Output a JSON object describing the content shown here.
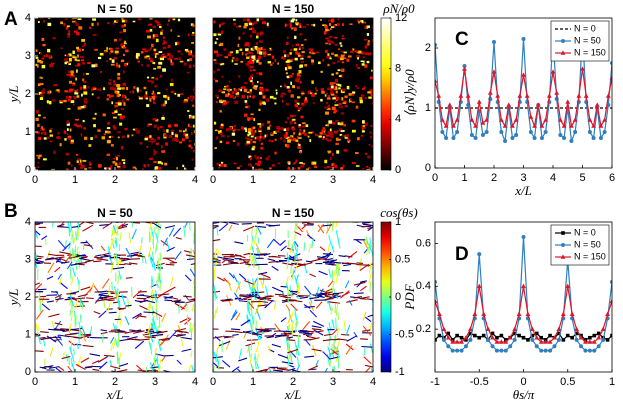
{
  "chart_data": [
    {
      "type": "heatmap",
      "panel": "A",
      "title": "N = 50",
      "ylabel": "y/L",
      "xlim": [
        0,
        4
      ],
      "ylim": [
        0,
        4
      ],
      "xticks": [
        0,
        1,
        2,
        3,
        4
      ],
      "yticks": [
        0,
        1,
        2,
        3,
        4
      ],
      "colormap": "hot"
    },
    {
      "type": "heatmap",
      "title": "N = 150",
      "xlim": [
        0,
        4
      ],
      "ylim": [
        0,
        4
      ],
      "xticks": [
        0,
        1,
        2,
        3,
        4
      ],
      "colormap": "hot",
      "colorbar": {
        "label": "ρN/ρ0",
        "lim": [
          0,
          12
        ],
        "ticks": [
          0,
          4,
          8,
          12
        ]
      }
    },
    {
      "type": "quiver",
      "panel": "B",
      "title": "N = 50",
      "xlabel": "x/L",
      "ylabel": "y/L",
      "xlim": [
        0,
        4
      ],
      "ylim": [
        0,
        4
      ],
      "xticks": [
        0,
        1,
        2,
        3,
        4
      ],
      "yticks": [
        0,
        1,
        2,
        3,
        4
      ],
      "colormap": "jet"
    },
    {
      "type": "quiver",
      "title": "N = 150",
      "xlabel": "x/L",
      "xlim": [
        0,
        4
      ],
      "ylim": [
        0,
        4
      ],
      "xticks": [
        0,
        1,
        2,
        3,
        4
      ],
      "colormap": "jet",
      "colorbar": {
        "label": "cos(θs)",
        "lim": [
          -1,
          1
        ],
        "ticks": [
          -1,
          -0.5,
          0,
          0.5,
          1
        ]
      }
    },
    {
      "type": "line",
      "panel": "C",
      "xlabel": "x/L",
      "ylabel": "⟨ρN⟩y/ρ0",
      "xlim": [
        0,
        6
      ],
      "ylim": [
        0,
        2.5
      ],
      "xticks": [
        0,
        1,
        2,
        3,
        4,
        5,
        6
      ],
      "yticks": [
        0,
        1,
        2
      ],
      "legend": "upper right",
      "series": [
        {
          "name": "N = 0",
          "color": "#000000",
          "dash": true,
          "x": [
            0,
            6
          ],
          "values": [
            1,
            1
          ]
        },
        {
          "name": "N = 50",
          "color": "#2f7fc1",
          "marker": "circle",
          "x": [
            0,
            0.125,
            0.25,
            0.375,
            0.5,
            0.625,
            0.75,
            0.875,
            1,
            1.125,
            1.25,
            1.375,
            1.5,
            1.625,
            1.75,
            1.875,
            2,
            2.125,
            2.25,
            2.375,
            2.5,
            2.625,
            2.75,
            2.875,
            3,
            3.125,
            3.25,
            3.375,
            3.5,
            3.625,
            3.75,
            3.875,
            4,
            4.125,
            4.25,
            4.375,
            4.5,
            4.625,
            4.75,
            4.875,
            5,
            5.125,
            5.25,
            5.375,
            5.5,
            5.625,
            5.75,
            5.875,
            6
          ],
          "values": [
            2.05,
            1.1,
            0.6,
            0.5,
            1.0,
            0.5,
            0.6,
            1.1,
            1.7,
            1.05,
            0.55,
            0.5,
            0.95,
            0.55,
            0.6,
            1.15,
            2.1,
            1.1,
            0.6,
            0.45,
            1.0,
            0.5,
            0.55,
            1.1,
            2.15,
            1.1,
            0.6,
            0.5,
            1.05,
            0.5,
            0.6,
            1.1,
            2.2,
            1.15,
            0.55,
            0.5,
            1.0,
            0.45,
            0.6,
            1.1,
            2.25,
            1.1,
            0.6,
            0.5,
            1.0,
            0.5,
            0.6,
            1.05,
            1.75
          ]
        },
        {
          "name": "N = 150",
          "color": "#d9182d",
          "marker": "triangle",
          "x": [
            0,
            0.125,
            0.25,
            0.375,
            0.5,
            0.625,
            0.75,
            0.875,
            1,
            1.125,
            1.25,
            1.375,
            1.5,
            1.625,
            1.75,
            1.875,
            2,
            2.125,
            2.25,
            2.375,
            2.5,
            2.625,
            2.75,
            2.875,
            3,
            3.125,
            3.25,
            3.375,
            3.5,
            3.625,
            3.75,
            3.875,
            4,
            4.125,
            4.25,
            4.375,
            4.5,
            4.625,
            4.75,
            4.875,
            5,
            5.125,
            5.25,
            5.375,
            5.5,
            5.625,
            5.75,
            5.875,
            6
          ],
          "values": [
            1.45,
            1.2,
            0.8,
            0.7,
            1.05,
            0.7,
            0.8,
            1.2,
            1.65,
            1.2,
            0.8,
            0.7,
            1.1,
            0.75,
            0.8,
            1.25,
            1.6,
            1.2,
            0.8,
            0.7,
            1.05,
            0.7,
            0.8,
            1.2,
            1.55,
            1.2,
            0.85,
            0.7,
            1.05,
            0.7,
            0.8,
            1.2,
            1.6,
            1.25,
            0.8,
            0.7,
            1.1,
            0.7,
            0.8,
            1.2,
            1.65,
            1.2,
            0.8,
            0.7,
            1.05,
            0.7,
            0.8,
            1.2,
            1.5
          ]
        }
      ]
    },
    {
      "type": "line",
      "panel": "D",
      "xlabel": "θs/π",
      "ylabel": "PDF",
      "xlim": [
        -1,
        1
      ],
      "ylim": [
        0,
        0.7
      ],
      "xticks": [
        -1,
        -0.5,
        0,
        0.5,
        1
      ],
      "yticks": [
        0.2,
        0.4,
        0.6
      ],
      "legend": "upper right",
      "series": [
        {
          "name": "N = 0",
          "color": "#000000",
          "marker": "square",
          "x": [
            -1,
            -0.95,
            -0.9,
            -0.85,
            -0.8,
            -0.75,
            -0.7,
            -0.65,
            -0.6,
            -0.55,
            -0.5,
            -0.45,
            -0.4,
            -0.35,
            -0.3,
            -0.25,
            -0.2,
            -0.15,
            -0.1,
            -0.05,
            0,
            0.05,
            0.1,
            0.15,
            0.2,
            0.25,
            0.3,
            0.35,
            0.4,
            0.45,
            0.5,
            0.55,
            0.6,
            0.65,
            0.7,
            0.75,
            0.8,
            0.85,
            0.9,
            0.95,
            1
          ],
          "values": [
            0.15,
            0.17,
            0.16,
            0.18,
            0.15,
            0.17,
            0.16,
            0.15,
            0.18,
            0.17,
            0.16,
            0.17,
            0.15,
            0.18,
            0.16,
            0.17,
            0.15,
            0.16,
            0.18,
            0.17,
            0.16,
            0.15,
            0.17,
            0.18,
            0.16,
            0.15,
            0.17,
            0.16,
            0.18,
            0.15,
            0.17,
            0.16,
            0.18,
            0.17,
            0.15,
            0.16,
            0.17,
            0.18,
            0.16,
            0.15,
            0.17
          ]
        },
        {
          "name": "N = 50",
          "color": "#2f7fc1",
          "marker": "circle",
          "x": [
            -1,
            -0.95,
            -0.9,
            -0.85,
            -0.8,
            -0.75,
            -0.7,
            -0.65,
            -0.6,
            -0.55,
            -0.5,
            -0.45,
            -0.4,
            -0.35,
            -0.3,
            -0.25,
            -0.2,
            -0.15,
            -0.1,
            -0.05,
            0,
            0.05,
            0.1,
            0.15,
            0.2,
            0.25,
            0.3,
            0.35,
            0.4,
            0.45,
            0.5,
            0.55,
            0.6,
            0.65,
            0.7,
            0.75,
            0.8,
            0.85,
            0.9,
            0.95,
            1
          ],
          "values": [
            0.42,
            0.25,
            0.15,
            0.12,
            0.1,
            0.1,
            0.1,
            0.12,
            0.15,
            0.25,
            0.55,
            0.25,
            0.15,
            0.12,
            0.1,
            0.1,
            0.1,
            0.12,
            0.15,
            0.25,
            0.63,
            0.25,
            0.15,
            0.12,
            0.1,
            0.1,
            0.1,
            0.12,
            0.15,
            0.25,
            0.52,
            0.25,
            0.15,
            0.12,
            0.1,
            0.1,
            0.1,
            0.12,
            0.15,
            0.25,
            0.42
          ]
        },
        {
          "name": "N = 150",
          "color": "#d9182d",
          "marker": "triangle",
          "x": [
            -1,
            -0.95,
            -0.9,
            -0.85,
            -0.8,
            -0.75,
            -0.7,
            -0.65,
            -0.6,
            -0.55,
            -0.5,
            -0.45,
            -0.4,
            -0.35,
            -0.3,
            -0.25,
            -0.2,
            -0.15,
            -0.1,
            -0.05,
            0,
            0.05,
            0.1,
            0.15,
            0.2,
            0.25,
            0.3,
            0.35,
            0.4,
            0.45,
            0.5,
            0.55,
            0.6,
            0.65,
            0.7,
            0.75,
            0.8,
            0.85,
            0.9,
            0.95,
            1
          ],
          "values": [
            0.33,
            0.27,
            0.2,
            0.16,
            0.14,
            0.14,
            0.14,
            0.16,
            0.2,
            0.27,
            0.4,
            0.27,
            0.2,
            0.16,
            0.14,
            0.14,
            0.14,
            0.16,
            0.2,
            0.27,
            0.4,
            0.27,
            0.2,
            0.16,
            0.14,
            0.14,
            0.14,
            0.16,
            0.2,
            0.27,
            0.4,
            0.27,
            0.2,
            0.16,
            0.14,
            0.14,
            0.14,
            0.16,
            0.2,
            0.27,
            0.33
          ]
        }
      ]
    }
  ]
}
